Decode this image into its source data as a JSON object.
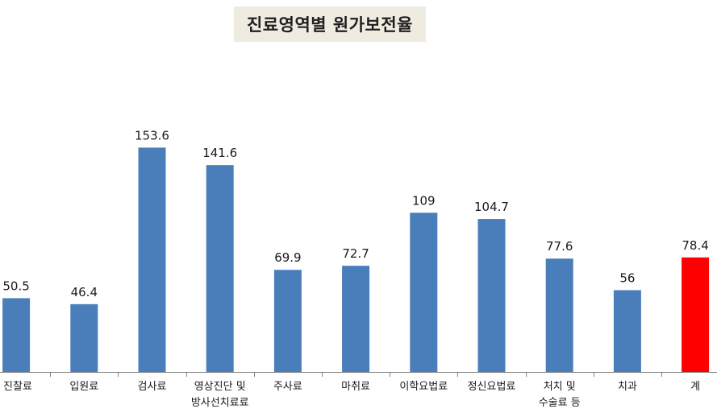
{
  "chart_data": {
    "type": "bar",
    "title": "진료영역별 원가보전율",
    "categories": [
      [
        "진찰료"
      ],
      [
        "입원료"
      ],
      [
        "검사료"
      ],
      [
        "영상진단 및",
        "방사선치료료"
      ],
      [
        "주사료"
      ],
      [
        "마취료"
      ],
      [
        "이학요법료"
      ],
      [
        "정신요법료"
      ],
      [
        "처치 및",
        "수술료 등"
      ],
      [
        "치과"
      ],
      [
        "계"
      ]
    ],
    "values": [
      50.5,
      46.4,
      153.6,
      141.6,
      69.9,
      72.7,
      109,
      104.7,
      77.6,
      56,
      78.4
    ],
    "value_labels": [
      "50.5",
      "46.4",
      "153.6",
      "141.6",
      "69.9",
      "72.7",
      "109",
      "104.7",
      "77.6",
      "56",
      "78.4"
    ],
    "ylim": [
      0,
      215
    ],
    "xlabel": "",
    "ylabel": "",
    "grid": false,
    "colors": {
      "bar": "#4a7ebb",
      "highlight_bar": "#ff0000",
      "highlight_label": "#ff0000",
      "axis": "#7f7f7f"
    },
    "highlight_index": 10
  }
}
